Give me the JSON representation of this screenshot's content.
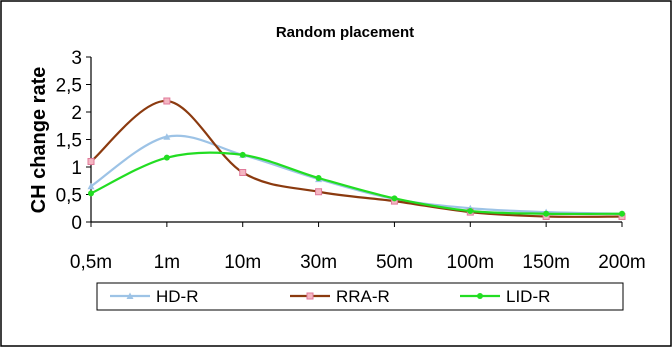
{
  "chart_data": {
    "type": "line",
    "title": "Random placement",
    "xlabel": "",
    "ylabel": "CH change rate",
    "categories": [
      "0,5m",
      "1m",
      "10m",
      "30m",
      "50m",
      "100m",
      "150m",
      "200m"
    ],
    "y_ticks": [
      "0",
      "0,5",
      "1",
      "1,5",
      "2",
      "2,5",
      "3"
    ],
    "ylim": [
      0,
      3
    ],
    "grid": false,
    "legend_position": "bottom",
    "series": [
      {
        "name": "HD-R",
        "color": "#9dc3e6",
        "marker": "triangle",
        "values": [
          0.65,
          1.55,
          1.22,
          0.78,
          0.42,
          0.25,
          0.18,
          0.15
        ]
      },
      {
        "name": "RRA-R",
        "color": "#8b3a0f",
        "marker": "square",
        "values": [
          1.1,
          2.2,
          0.9,
          0.55,
          0.38,
          0.18,
          0.1,
          0.1
        ]
      },
      {
        "name": "LID-R",
        "color": "#22dd22",
        "marker": "circle",
        "values": [
          0.52,
          1.17,
          1.22,
          0.8,
          0.43,
          0.2,
          0.15,
          0.15
        ]
      }
    ]
  }
}
